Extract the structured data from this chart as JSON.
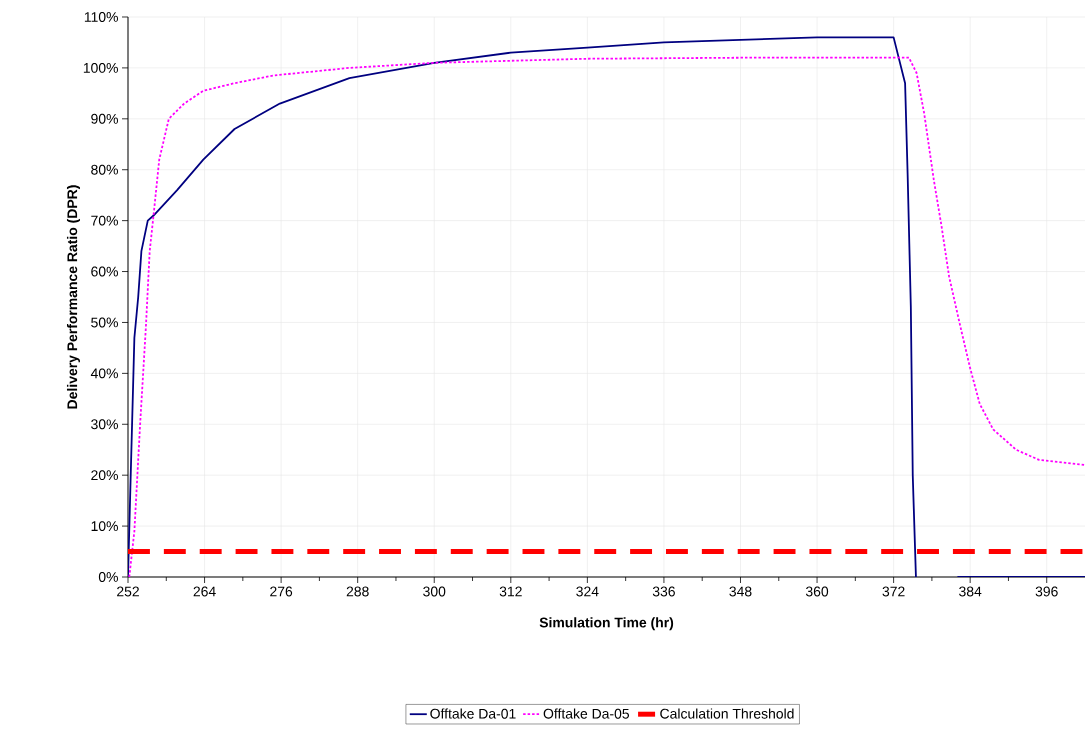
{
  "chart_data": {
    "type": "line",
    "xlabel": "Simulation Time (hr)",
    "ylabel": "Delivery Performance Ratio (DPR)",
    "xlim": [
      252,
      402
    ],
    "ylim": [
      0,
      110
    ],
    "xticks": [
      252,
      264,
      276,
      288,
      300,
      312,
      324,
      336,
      348,
      360,
      372,
      384,
      396
    ],
    "yticks": [
      {
        "value": 0,
        "label": "0%"
      },
      {
        "value": 10,
        "label": "10%"
      },
      {
        "value": 20,
        "label": "20%"
      },
      {
        "value": 30,
        "label": "30%"
      },
      {
        "value": 40,
        "label": "40%"
      },
      {
        "value": 50,
        "label": "50%"
      },
      {
        "value": 60,
        "label": "60%"
      },
      {
        "value": 70,
        "label": "70%"
      },
      {
        "value": 80,
        "label": "80%"
      },
      {
        "value": 90,
        "label": "90%"
      },
      {
        "value": 100,
        "label": "100%"
      },
      {
        "value": 110,
        "label": "110%"
      }
    ],
    "grid": true,
    "legend": "bottom",
    "series": [
      {
        "name": "Offtake Da-01",
        "color": "#000080",
        "line_style": "solid",
        "x": [
          252,
          253.0,
          253.6,
          254.1,
          255.1,
          256,
          259.7,
          263.8,
          268.7,
          275.8,
          286.7,
          300,
          312,
          324,
          336,
          348,
          360,
          372,
          373.8,
          374.2,
          374.7,
          375,
          375.5,
          378,
          382,
          390,
          402
        ],
        "values": [
          0,
          47,
          55,
          64,
          70,
          71,
          76,
          82,
          88,
          93,
          98,
          101,
          103,
          104,
          105,
          105.5,
          106,
          106,
          97,
          79,
          53,
          20,
          0,
          null,
          0,
          0,
          0
        ]
      },
      {
        "name": "Offtake Da-05",
        "color": "#ff00ff",
        "line_style": "dotted",
        "x": [
          252.2,
          253.0,
          253.9,
          254.8,
          255.4,
          256,
          256.9,
          258.4,
          260.8,
          263.8,
          268.7,
          274.7,
          286.7,
          300,
          324,
          348,
          372,
          374.4,
          375.6,
          376.8,
          378.3,
          379.5,
          380.7,
          382.5,
          384,
          385.5,
          387.6,
          391.2,
          394.8,
          402
        ],
        "values": [
          0,
          9,
          30,
          49,
          64,
          71,
          82,
          90,
          93,
          95.5,
          97,
          98.5,
          100,
          101,
          101.8,
          102,
          102,
          102,
          99,
          91,
          78,
          69,
          59,
          49,
          41,
          34,
          29,
          25,
          23,
          22
        ]
      }
    ],
    "ref_lines": [
      {
        "axis": "y",
        "value": 5,
        "label": "Calculation Threshold",
        "color": "#ff0000",
        "line_style": "dashed"
      }
    ]
  }
}
